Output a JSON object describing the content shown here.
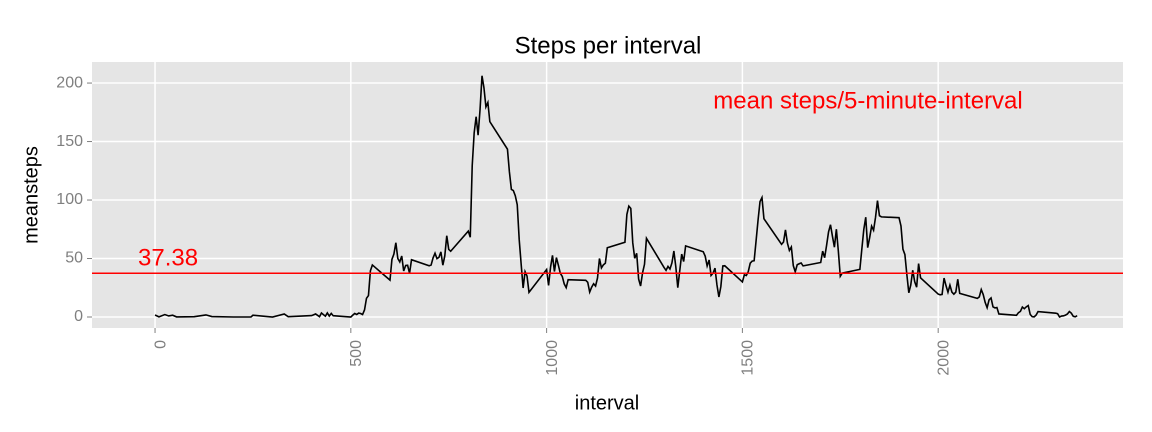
{
  "chart_data": {
    "type": "line",
    "title": "Steps per interval",
    "x_label": "interval",
    "y_label": "meansteps",
    "x": [
      0,
      10,
      25,
      35,
      45,
      55,
      100,
      130,
      145,
      200,
      230,
      245,
      250,
      300,
      330,
      340,
      400,
      410,
      420,
      425,
      435,
      440,
      445,
      450,
      455,
      500,
      505,
      510,
      515,
      520,
      525,
      530,
      535,
      540,
      545,
      550,
      555,
      600,
      605,
      610,
      615,
      620,
      625,
      630,
      635,
      640,
      645,
      650,
      655,
      700,
      705,
      710,
      715,
      720,
      725,
      730,
      735,
      740,
      745,
      750,
      755,
      800,
      805,
      810,
      815,
      820,
      825,
      830,
      835,
      840,
      845,
      850,
      855,
      900,
      905,
      910,
      915,
      920,
      925,
      930,
      935,
      940,
      945,
      950,
      955,
      1000,
      1005,
      1010,
      1015,
      1020,
      1025,
      1030,
      1035,
      1040,
      1045,
      1050,
      1055,
      1100,
      1105,
      1110,
      1115,
      1120,
      1125,
      1130,
      1135,
      1140,
      1145,
      1150,
      1155,
      1200,
      1205,
      1210,
      1215,
      1220,
      1225,
      1230,
      1235,
      1240,
      1245,
      1250,
      1255,
      1300,
      1305,
      1310,
      1315,
      1320,
      1325,
      1330,
      1335,
      1340,
      1345,
      1350,
      1355,
      1400,
      1405,
      1410,
      1415,
      1420,
      1425,
      1430,
      1435,
      1440,
      1445,
      1450,
      1455,
      1500,
      1505,
      1510,
      1515,
      1520,
      1525,
      1530,
      1535,
      1540,
      1545,
      1550,
      1555,
      1600,
      1605,
      1610,
      1615,
      1620,
      1625,
      1630,
      1635,
      1640,
      1645,
      1650,
      1655,
      1700,
      1705,
      1710,
      1715,
      1720,
      1725,
      1730,
      1735,
      1740,
      1745,
      1750,
      1755,
      1800,
      1805,
      1810,
      1815,
      1820,
      1825,
      1830,
      1835,
      1840,
      1845,
      1850,
      1855,
      1900,
      1905,
      1910,
      1915,
      1920,
      1925,
      1930,
      1935,
      1940,
      1945,
      1950,
      1955,
      2000,
      2005,
      2010,
      2015,
      2020,
      2025,
      2030,
      2035,
      2040,
      2045,
      2050,
      2055,
      2100,
      2105,
      2110,
      2115,
      2120,
      2125,
      2130,
      2135,
      2140,
      2145,
      2150,
      2155,
      2200,
      2205,
      2210,
      2215,
      2220,
      2225,
      2230,
      2235,
      2240,
      2245,
      2250,
      2255,
      2300,
      2305,
      2310,
      2315,
      2320,
      2325,
      2330,
      2335,
      2340,
      2345,
      2350,
      2355
    ],
    "series": [
      {
        "name": "meansteps",
        "color": "#000000",
        "values": [
          1.7,
          0.1,
          2.1,
          0.9,
          1.5,
          0.1,
          0.3,
          1.8,
          0.4,
          0,
          0,
          0,
          1.5,
          0,
          2.6,
          0.3,
          1.2,
          2.6,
          0.3,
          3.4,
          0.7,
          3.5,
          0.8,
          3.1,
          1.1,
          0,
          1.6,
          3,
          2.2,
          3.3,
          3,
          2.1,
          6.1,
          16,
          18.3,
          39.5,
          44.5,
          31.5,
          49.3,
          53.8,
          63.5,
          50,
          47.1,
          52.2,
          39.3,
          44,
          44.2,
          37.4,
          49,
          43.8,
          44.4,
          50.5,
          54.5,
          49.9,
          51,
          55.7,
          44.3,
          52.3,
          69.5,
          57.8,
          56.2,
          73.4,
          68.2,
          129.4,
          157.5,
          171.2,
          155.4,
          177.3,
          206.2,
          195.9,
          179.6,
          183.4,
          167,
          143.5,
          124,
          109.1,
          108.1,
          103.7,
          96,
          66.2,
          45.2,
          24.8,
          38.8,
          35,
          21.1,
          40.6,
          27,
          42.4,
          52.7,
          38.9,
          50.8,
          44.3,
          37.4,
          34.7,
          28.3,
          25.1,
          31.9,
          31.4,
          29.7,
          21.3,
          25.5,
          28.4,
          26.5,
          33.4,
          50,
          42,
          44.6,
          46,
          59.2,
          63.9,
          87.7,
          94.8,
          92.8,
          63.4,
          50.2,
          54.5,
          32.4,
          26.5,
          37.7,
          45.1,
          67.3,
          42.3,
          39.9,
          43.3,
          41,
          46.2,
          56.4,
          42.8,
          25.1,
          39.5,
          53.8,
          47.4,
          60.8,
          55.8,
          52,
          43.6,
          48.7,
          35.5,
          37.5,
          41.8,
          27.5,
          17.1,
          26.1,
          43.6,
          43.8,
          30,
          36.1,
          35.5,
          38.8,
          46,
          47.8,
          48.1,
          65.3,
          82.9,
          98.7,
          102.1,
          84,
          62.1,
          64.1,
          74.5,
          63.2,
          56.9,
          59.8,
          43.9,
          38.6,
          44.7,
          45.5,
          46.2,
          43.7,
          46.6,
          56.3,
          50.7,
          61.2,
          72.7,
          78.9,
          68.9,
          59.7,
          75.1,
          56.5,
          34.8,
          37.5,
          40.7,
          58,
          74.7,
          85.3,
          59.3,
          67.8,
          77.7,
          74.2,
          85.3,
          99.5,
          86.6,
          85.6,
          84.9,
          77.8,
          58,
          53.4,
          36.3,
          20.7,
          27.4,
          40,
          30.2,
          25.5,
          45.7,
          33.5,
          19.6,
          19,
          19.3,
          33.3,
          26.8,
          21.2,
          27.3,
          21.3,
          19.5,
          21.3,
          32.3,
          20.2,
          15.9,
          17.2,
          23.5,
          19.2,
          12.5,
          8,
          14.7,
          16.3,
          8.7,
          7.8,
          8.1,
          2.6,
          1.5,
          3.7,
          4.8,
          8.5,
          7.1,
          8.7,
          9.8,
          2.2,
          0.3,
          0.1,
          1.6,
          4.6,
          3.3,
          2.8,
          0,
          0.8,
          1,
          1.6,
          2.6,
          4.7,
          3.3,
          0.6,
          0.2,
          1.1
        ]
      }
    ],
    "hline": 37.38,
    "hline_color": "#ff0000",
    "annotation": "mean steps/5-minute-interval",
    "annotation_color": "#ff0000",
    "xlim": [
      -161,
      2472
    ],
    "ylim": [
      -9.4,
      218
    ],
    "xticks": [
      0,
      500,
      1000,
      1500,
      2000
    ],
    "yticks": [
      0,
      50,
      100,
      150,
      200
    ],
    "grid": true
  }
}
